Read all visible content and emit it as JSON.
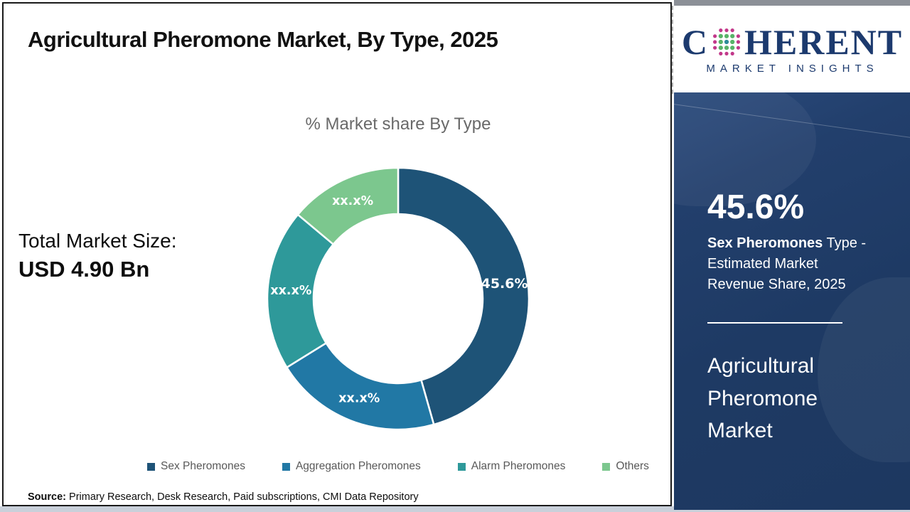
{
  "header": {
    "title": "Agricultural Pheromone Market, By Type, 2025"
  },
  "logo": {
    "brand_first_letter": "C",
    "brand_rest": "HERENT",
    "subtitle": "MARKET INSIGHTS",
    "navy": "#1c3a6e",
    "globe_dot_colors": {
      "outer": "#c2388a",
      "middle": "#58b368",
      "inner": "#2d8c99"
    }
  },
  "main": {
    "chart_subtitle": "% Market share By Type",
    "total_label": "Total Market Size:",
    "total_value": "USD 4.90 Bn",
    "source_label": "Source:",
    "source_text": " Primary Research, Desk Research, Paid subscriptions, CMI Data Repository"
  },
  "chart_data": {
    "type": "pie",
    "subtype": "donut",
    "title": "% Market share By Type",
    "categories": [
      "Sex Pheromones",
      "Aggregation Pheromones",
      "Alarm Pheromones",
      "Others"
    ],
    "values": [
      45.6,
      20.6,
      19.9,
      13.9
    ],
    "slice_labels": [
      "45.6%",
      "xx.x%",
      "xx.x%",
      "xx.x%"
    ],
    "colors": [
      "#1E5377",
      "#2178A5",
      "#2E999A",
      "#7CC78E"
    ],
    "legend_position": "bottom",
    "start_angle_deg": 0,
    "direction": "clockwise",
    "outer_radius": 184,
    "inner_radius": 119,
    "separator_color": "#ffffff"
  },
  "sidebar": {
    "stat_value": "45.6%",
    "stat_desc_bold": "Sex Pheromones",
    "stat_desc_rest": " Type - Estimated Market Revenue Share, 2025",
    "market_name": "Agricultural Pheromone Market",
    "bg_color": "#1e3a64"
  }
}
